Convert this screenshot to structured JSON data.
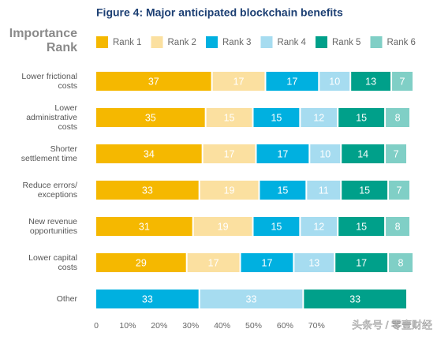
{
  "chart_data": {
    "type": "stacked-bar-horizontal",
    "title": "Figure 4: Major anticipated blockchain benefits",
    "legend_title": "Importance\nRank",
    "categories": [
      "Lower frictional\ncosts",
      "Lower\nadministrative\ncosts",
      "Shorter\nsettlement time",
      "Reduce errors/\nexceptions",
      "New revenue\nopportunities",
      "Lower capital\ncosts",
      "Other"
    ],
    "series": [
      {
        "name": "Rank 1",
        "color": "#f5b800",
        "values": [
          37,
          35,
          34,
          33,
          31,
          29,
          null
        ]
      },
      {
        "name": "Rank 2",
        "color": "#fbe0a0",
        "values": [
          17,
          15,
          17,
          19,
          19,
          17,
          null
        ]
      },
      {
        "name": "Rank 3",
        "color": "#00b0e0",
        "values": [
          17,
          15,
          17,
          15,
          15,
          17,
          33
        ]
      },
      {
        "name": "Rank 4",
        "color": "#a6dcf0",
        "values": [
          10,
          12,
          10,
          11,
          12,
          13,
          33
        ]
      },
      {
        "name": "Rank 5",
        "color": "#00a08a",
        "values": [
          13,
          15,
          14,
          15,
          15,
          17,
          33
        ]
      },
      {
        "name": "Rank 6",
        "color": "#80cfc6",
        "values": [
          7,
          8,
          7,
          7,
          8,
          8,
          null
        ]
      }
    ],
    "xlim": [
      0,
      100
    ],
    "xticks": [
      0,
      {
        "value": 10,
        "label": "10%"
      },
      {
        "value": 20,
        "label": "20%"
      },
      {
        "value": 30,
        "label": "30%"
      },
      {
        "value": 40,
        "label": "40%"
      },
      {
        "value": 50,
        "label": "50%"
      },
      {
        "value": 60,
        "label": "60%"
      },
      {
        "value": 70,
        "label": "70%"
      }
    ],
    "watermark": "头条号 / 零壹财经"
  }
}
